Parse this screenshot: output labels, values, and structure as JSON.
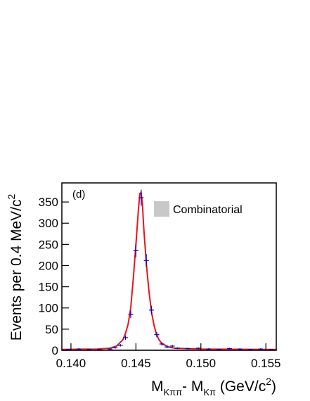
{
  "chart_data": {
    "type": "histogram-fit",
    "annotation": "(d)",
    "y_label": {
      "text": "Events per 0.4 MeV/c",
      "sup": "2"
    },
    "x_label": {
      "main": "M",
      "sub1": "Kππ",
      "mid": "- M",
      "sub2": "Kπ",
      "unit": " (GeV/c",
      "sup": "2",
      "end": ")"
    },
    "xlim": [
      0.1393,
      0.1558
    ],
    "ylim": [
      0,
      395
    ],
    "xticks": [
      {
        "value": 0.14,
        "label": "0.140"
      },
      {
        "value": 0.145,
        "label": "0.145"
      },
      {
        "value": 0.15,
        "label": "0.150"
      },
      {
        "value": 0.155,
        "label": "0.155"
      }
    ],
    "yticks": [
      0,
      50,
      100,
      150,
      200,
      250,
      300,
      350
    ],
    "points": {
      "color": "#0000cc",
      "x": [
        0.1398,
        0.1406,
        0.1414,
        0.1422,
        0.143,
        0.1434,
        0.1438,
        0.1442,
        0.1446,
        0.145,
        0.1454,
        0.1458,
        0.1462,
        0.1466,
        0.147,
        0.1474,
        0.1478,
        0.1482,
        0.149,
        0.1498,
        0.1506,
        0.1514,
        0.1522,
        0.153,
        0.1538,
        0.1546,
        0.1554
      ],
      "values": [
        2,
        3,
        2,
        2,
        3,
        6,
        12,
        30,
        85,
        235,
        360,
        212,
        95,
        37,
        15,
        8,
        10,
        5,
        4,
        5,
        3,
        2,
        4,
        3,
        2,
        3,
        2
      ],
      "errors": [
        1,
        2,
        1,
        1,
        2,
        2,
        3,
        5,
        9,
        15,
        19,
        15,
        10,
        6,
        4,
        3,
        3,
        2,
        2,
        2,
        2,
        1,
        2,
        2,
        1,
        2,
        1
      ]
    },
    "fit": {
      "color": "#e8141c",
      "x": [
        0.1393,
        0.142,
        0.143,
        0.1435,
        0.144,
        0.1442,
        0.1444,
        0.1446,
        0.1448,
        0.145,
        0.1452,
        0.1453,
        0.1454,
        0.1455,
        0.1456,
        0.1458,
        0.146,
        0.1462,
        0.1464,
        0.1466,
        0.1468,
        0.147,
        0.1475,
        0.148,
        0.15,
        0.1558
      ],
      "values": [
        2,
        3,
        5,
        10,
        25,
        40,
        62,
        100,
        170,
        250,
        335,
        370,
        372,
        345,
        290,
        205,
        140,
        90,
        58,
        36,
        24,
        16,
        8,
        5,
        3,
        2
      ]
    },
    "background": {
      "name": "Combinatorial",
      "color": "#c8c8c8",
      "x": [
        0.1393,
        0.1558
      ],
      "values": [
        3,
        3
      ]
    }
  }
}
